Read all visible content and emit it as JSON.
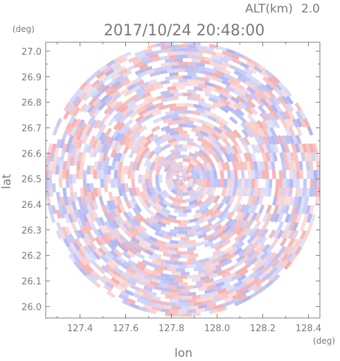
{
  "chart_data": {
    "type": "heatmap",
    "projection": "polar-scan",
    "altitude_label": "ALT(km)",
    "altitude_value": "2.0",
    "timestamp": "2017/10/24 20:48:00",
    "xlabel": "lon",
    "ylabel": "lat",
    "x_unit": "(deg)",
    "y_unit": "(deg)",
    "xlim": [
      127.25,
      128.45
    ],
    "ylim": [
      25.955,
      27.035
    ],
    "xticks": [
      127.4,
      127.6,
      127.8,
      128.0,
      128.2,
      128.4
    ],
    "xtick_labels": [
      "127.4",
      "127.6",
      "127.8",
      "128.0",
      "128.2",
      "128.4"
    ],
    "yticks": [
      26.0,
      26.1,
      26.2,
      26.3,
      26.4,
      26.5,
      26.6,
      26.7,
      26.8,
      26.9,
      27.0
    ],
    "ytick_labels": [
      "26.0",
      "26.1",
      "26.2",
      "26.3",
      "26.4",
      "26.5",
      "26.6",
      "26.7",
      "26.8",
      "26.9",
      "27.0"
    ],
    "center": {
      "lon": 127.85,
      "lat": 26.5
    },
    "radius_lat_deg": 0.54,
    "colors": {
      "positive": "#f4a6a6",
      "negative": "#a9aef0",
      "neutral": "#ffffff",
      "frame": "#7a7a7a",
      "text": "#7a7a7a"
    },
    "grid": false
  }
}
